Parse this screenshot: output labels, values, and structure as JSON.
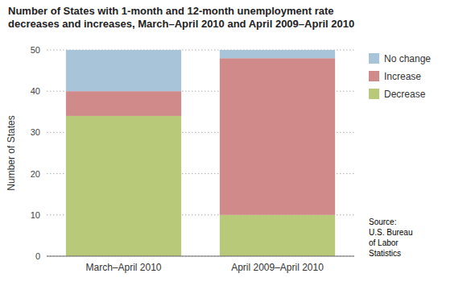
{
  "chart_data": {
    "type": "bar",
    "stacked": true,
    "title": "Number of States with 1-month and 12-month unemployment rate\ndecreases and increases, March–April 2010 and April 2009–April 2010",
    "categories": [
      "March–April 2010",
      "April 2009–April 2010"
    ],
    "series": [
      {
        "name": "Decrease",
        "color": "#b8c97a",
        "values": [
          34,
          10
        ]
      },
      {
        "name": "Increase",
        "color": "#d08a8a",
        "values": [
          6,
          38
        ]
      },
      {
        "name": "No change",
        "color": "#a8c4d8",
        "values": [
          10,
          2
        ]
      }
    ],
    "ylabel": "Number of States",
    "ylim": [
      0,
      50
    ],
    "yticks": [
      0,
      10,
      20,
      30,
      40,
      50
    ],
    "grid": true,
    "legend": "right",
    "data_labels": true,
    "annotations": [
      "Source:\nU.S. Bureau\nof Labor\nStatistics"
    ]
  }
}
